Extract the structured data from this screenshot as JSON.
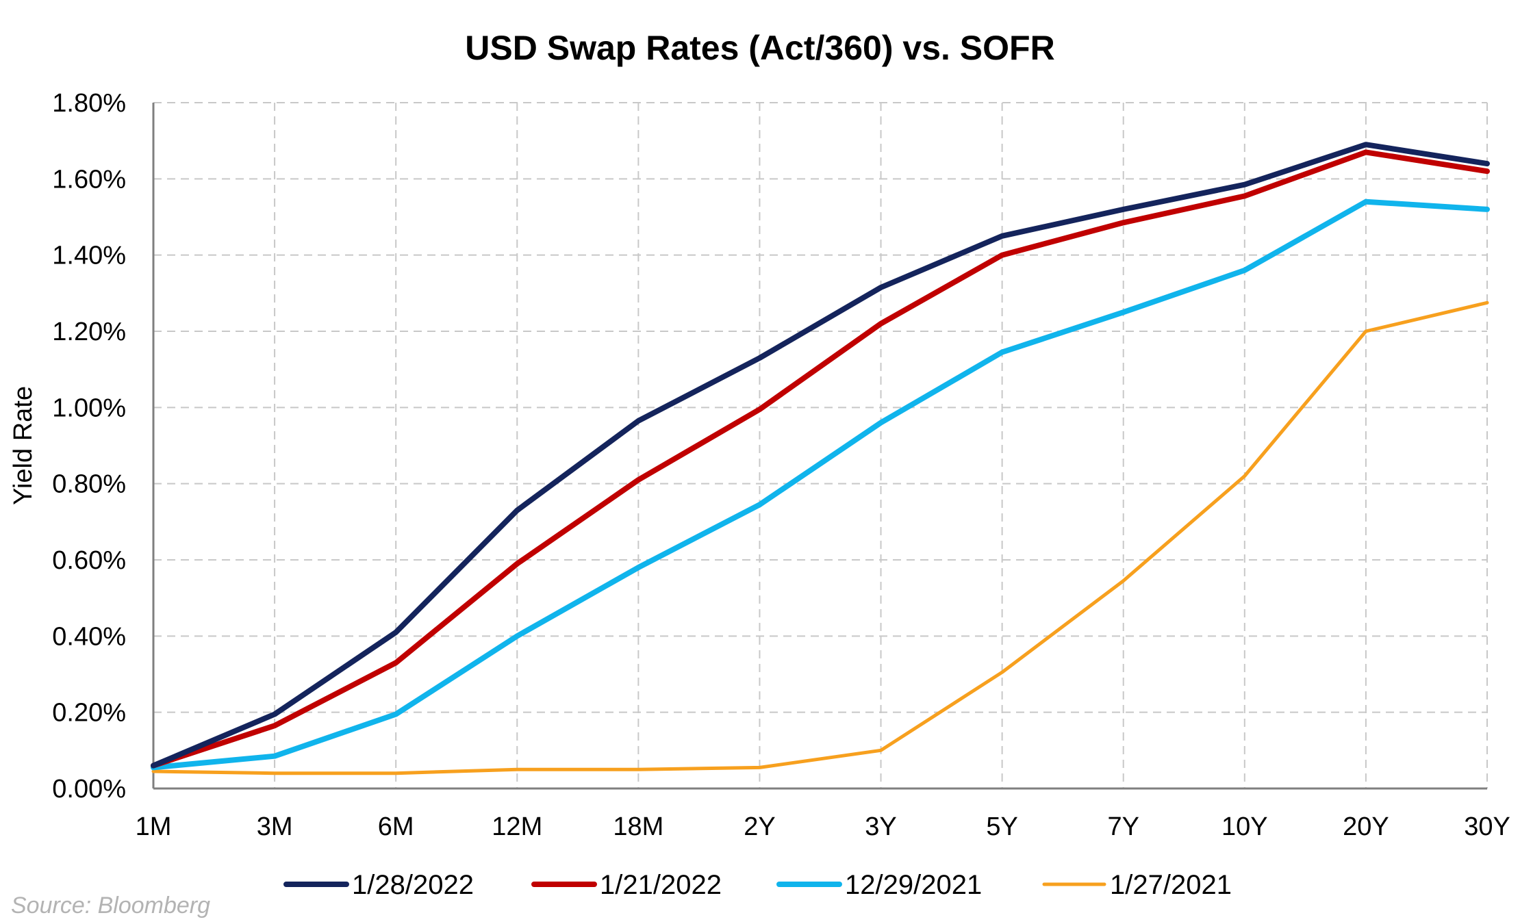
{
  "chart_data": {
    "type": "line",
    "title": "USD Swap Rates (Act/360) vs. SOFR",
    "ylabel": "Yield Rate",
    "xlabel": "",
    "categories": [
      "1M",
      "3M",
      "6M",
      "12M",
      "18M",
      "2Y",
      "3Y",
      "5Y",
      "7Y",
      "10Y",
      "20Y",
      "30Y"
    ],
    "ylim": [
      0,
      1.8
    ],
    "yticks": [
      "0.00%",
      "0.20%",
      "0.40%",
      "0.60%",
      "0.80%",
      "1.00%",
      "1.20%",
      "1.40%",
      "1.60%",
      "1.80%"
    ],
    "grid": true,
    "legend_position": "bottom",
    "series": [
      {
        "name": "1/28/2022",
        "color": "#14245c",
        "values": [
          0.06,
          0.195,
          0.41,
          0.73,
          0.965,
          1.13,
          1.315,
          1.45,
          1.52,
          1.585,
          1.69,
          1.64
        ]
      },
      {
        "name": "1/21/2022",
        "color": "#c00000",
        "values": [
          0.06,
          0.165,
          0.33,
          0.59,
          0.81,
          0.995,
          1.22,
          1.4,
          1.485,
          1.555,
          1.67,
          1.62
        ]
      },
      {
        "name": "12/29/2021",
        "color": "#10b4ec",
        "values": [
          0.055,
          0.085,
          0.195,
          0.4,
          0.58,
          0.745,
          0.96,
          1.145,
          1.25,
          1.36,
          1.54,
          1.52
        ]
      },
      {
        "name": "1/27/2021",
        "color": "#f7a01e",
        "values": [
          0.045,
          0.04,
          0.04,
          0.05,
          0.05,
          0.055,
          0.1,
          0.305,
          0.545,
          0.82,
          1.2,
          1.275
        ]
      }
    ]
  },
  "source_note": "Source: Bloomberg"
}
